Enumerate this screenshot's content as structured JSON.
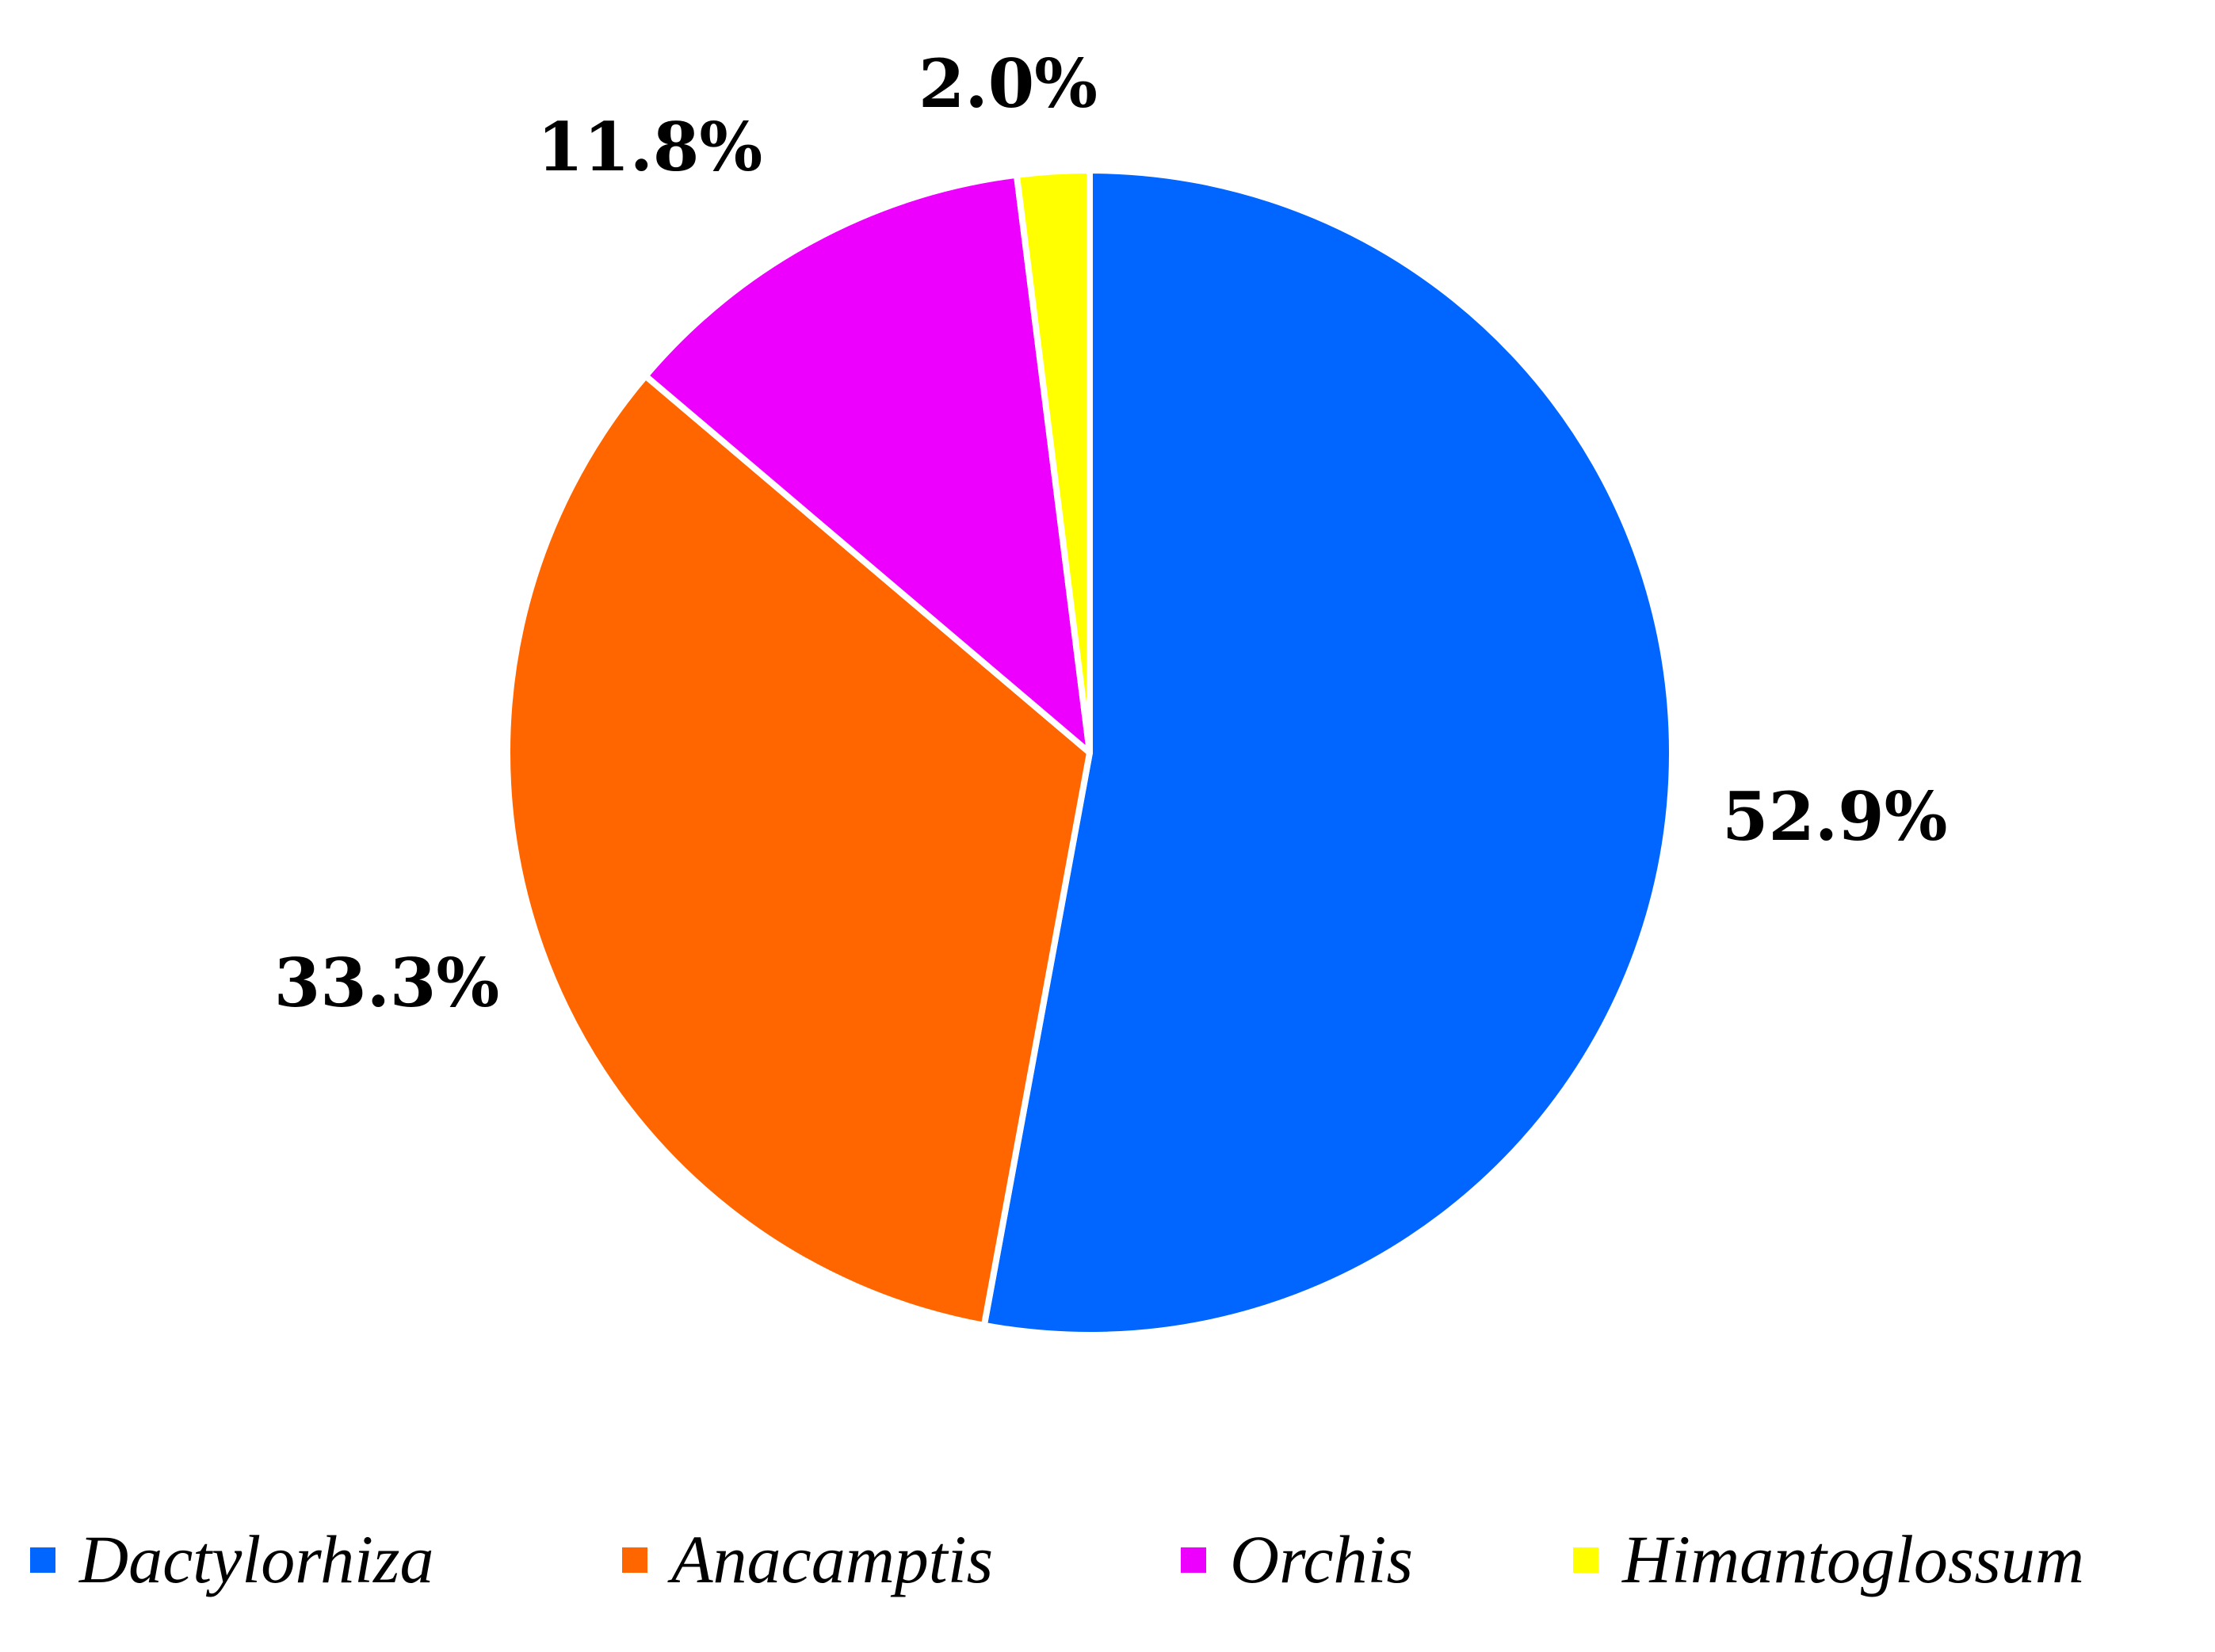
{
  "chart_data": {
    "type": "pie",
    "legend_position": "bottom",
    "series": [
      {
        "name": "Dactylorhiza",
        "value": 52.9,
        "label": "52.9%",
        "color": "#0066FF"
      },
      {
        "name": "Anacamptis",
        "value": 33.3,
        "label": "33.3%",
        "color": "#FF6600"
      },
      {
        "name": "Orchis",
        "value": 11.8,
        "label": "11.8%",
        "color": "#EE00FF"
      },
      {
        "name": "Himantoglossum",
        "value": 2.0,
        "label": "2.0%",
        "color": "#FFFF00"
      }
    ]
  }
}
